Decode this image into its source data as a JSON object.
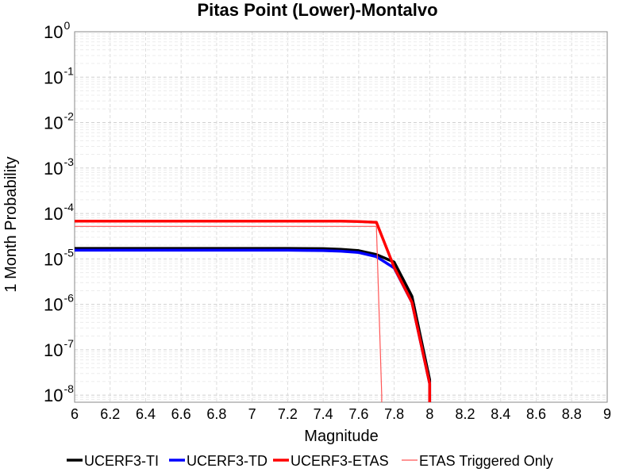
{
  "chart_data": {
    "type": "line",
    "title": "Pitas Point (Lower)-Montalvo",
    "xlabel": "Magnitude",
    "ylabel": "1 Month Probability",
    "xlim": [
      6,
      9
    ],
    "ylim": [
      7e-09,
      1
    ],
    "y_scale": "log",
    "grid": true,
    "legend_position": "bottom",
    "x_ticks": [
      "6",
      "6.2",
      "6.4",
      "6.6",
      "6.8",
      "7",
      "7.2",
      "7.4",
      "7.6",
      "7.8",
      "8",
      "8.2",
      "8.4",
      "8.6",
      "8.8",
      "9"
    ],
    "y_ticks": [
      {
        "base": "10",
        "exp": "0",
        "value": 1
      },
      {
        "base": "10",
        "exp": "-1",
        "value": 0.1
      },
      {
        "base": "10",
        "exp": "-2",
        "value": 0.01
      },
      {
        "base": "10",
        "exp": "-3",
        "value": 0.001
      },
      {
        "base": "10",
        "exp": "-4",
        "value": 0.0001
      },
      {
        "base": "10",
        "exp": "-5",
        "value": 1e-05
      },
      {
        "base": "10",
        "exp": "-6",
        "value": 1e-06
      },
      {
        "base": "10",
        "exp": "-7",
        "value": 1e-07
      },
      {
        "base": "10",
        "exp": "-8",
        "value": 1e-08
      }
    ],
    "series": [
      {
        "name": "UCERF3-TI",
        "color": "#000000",
        "width": 3.5,
        "x": [
          6.0,
          6.5,
          7.0,
          7.2,
          7.4,
          7.5,
          7.6,
          7.7,
          7.8,
          7.9,
          8.0,
          8.0
        ],
        "y": [
          1.7e-05,
          1.7e-05,
          1.7e-05,
          1.7e-05,
          1.68e-05,
          1.62e-05,
          1.52e-05,
          1.25e-05,
          8.5e-06,
          1.5e-06,
          2.2e-08,
          5e-09
        ]
      },
      {
        "name": "UCERF3-TD",
        "color": "#0000ff",
        "width": 3.5,
        "x": [
          6.0,
          6.5,
          7.0,
          7.2,
          7.4,
          7.5,
          7.6,
          7.7,
          7.8,
          7.9,
          8.0,
          8.0
        ],
        "y": [
          1.55e-05,
          1.55e-05,
          1.55e-05,
          1.55e-05,
          1.52e-05,
          1.48e-05,
          1.38e-05,
          1.12e-05,
          6.3e-06,
          1.1e-06,
          1.8e-08,
          5e-09
        ]
      },
      {
        "name": "UCERF3-ETAS",
        "color": "#ff0000",
        "width": 3.5,
        "x": [
          6.0,
          6.5,
          7.0,
          7.2,
          7.4,
          7.5,
          7.6,
          7.7,
          7.8,
          7.9,
          8.0,
          8.0
        ],
        "y": [
          6.8e-05,
          6.8e-05,
          6.8e-05,
          6.8e-05,
          6.78e-05,
          6.75e-05,
          6.65e-05,
          6.4e-05,
          6.5e-06,
          1.1e-06,
          1.8e-08,
          5e-09
        ]
      },
      {
        "name": "ETAS Triggered Only",
        "color": "#ff5555",
        "width": 1.2,
        "x": [
          6.0,
          7.0,
          7.7,
          7.73,
          7.73
        ],
        "y": [
          5.2e-05,
          5.2e-05,
          5.2e-05,
          1e-08,
          5e-09
        ]
      }
    ]
  }
}
